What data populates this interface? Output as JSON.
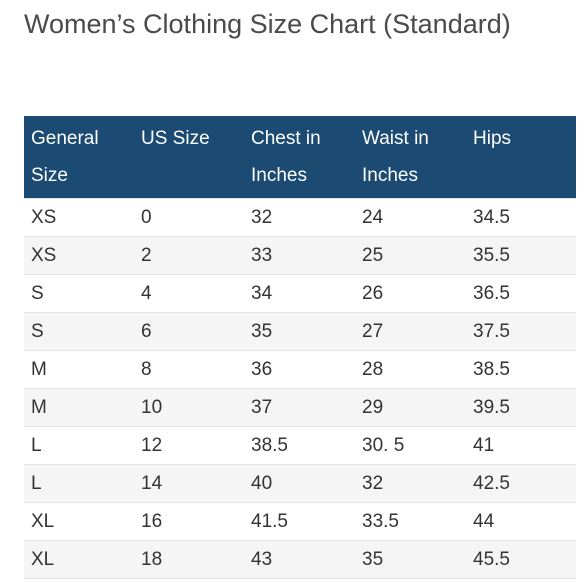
{
  "title": "Women’s Clothing Size Chart (Standard)",
  "table": {
    "headers": [
      "General Size",
      "US Size",
      "Chest in Inches",
      "Waist in Inches",
      "Hips"
    ],
    "rows": [
      [
        "XS",
        "0",
        "32",
        "24",
        "34.5"
      ],
      [
        "XS",
        "2",
        "33",
        "25",
        "35.5"
      ],
      [
        "S",
        "4",
        "34",
        "26",
        "36.5"
      ],
      [
        "S",
        "6",
        "35",
        "27",
        "37.5"
      ],
      [
        "M",
        "8",
        "36",
        "28",
        "38.5"
      ],
      [
        "M",
        "10",
        "37",
        "29",
        "39.5"
      ],
      [
        "L",
        "12",
        "38.5",
        "30. 5",
        "41"
      ],
      [
        "L",
        "14",
        "40",
        "32",
        "42.5"
      ],
      [
        "XL",
        "16",
        "41.5",
        "33.5",
        "44"
      ],
      [
        "XL",
        "18",
        "43",
        "35",
        "45.5"
      ]
    ]
  },
  "colors": {
    "header_background": "#1b4a72",
    "header_text": "#ffffff",
    "title_text": "#4a4a4a",
    "row_divider": "#e3e3e3",
    "alternate_row": "#f5f5f5"
  }
}
